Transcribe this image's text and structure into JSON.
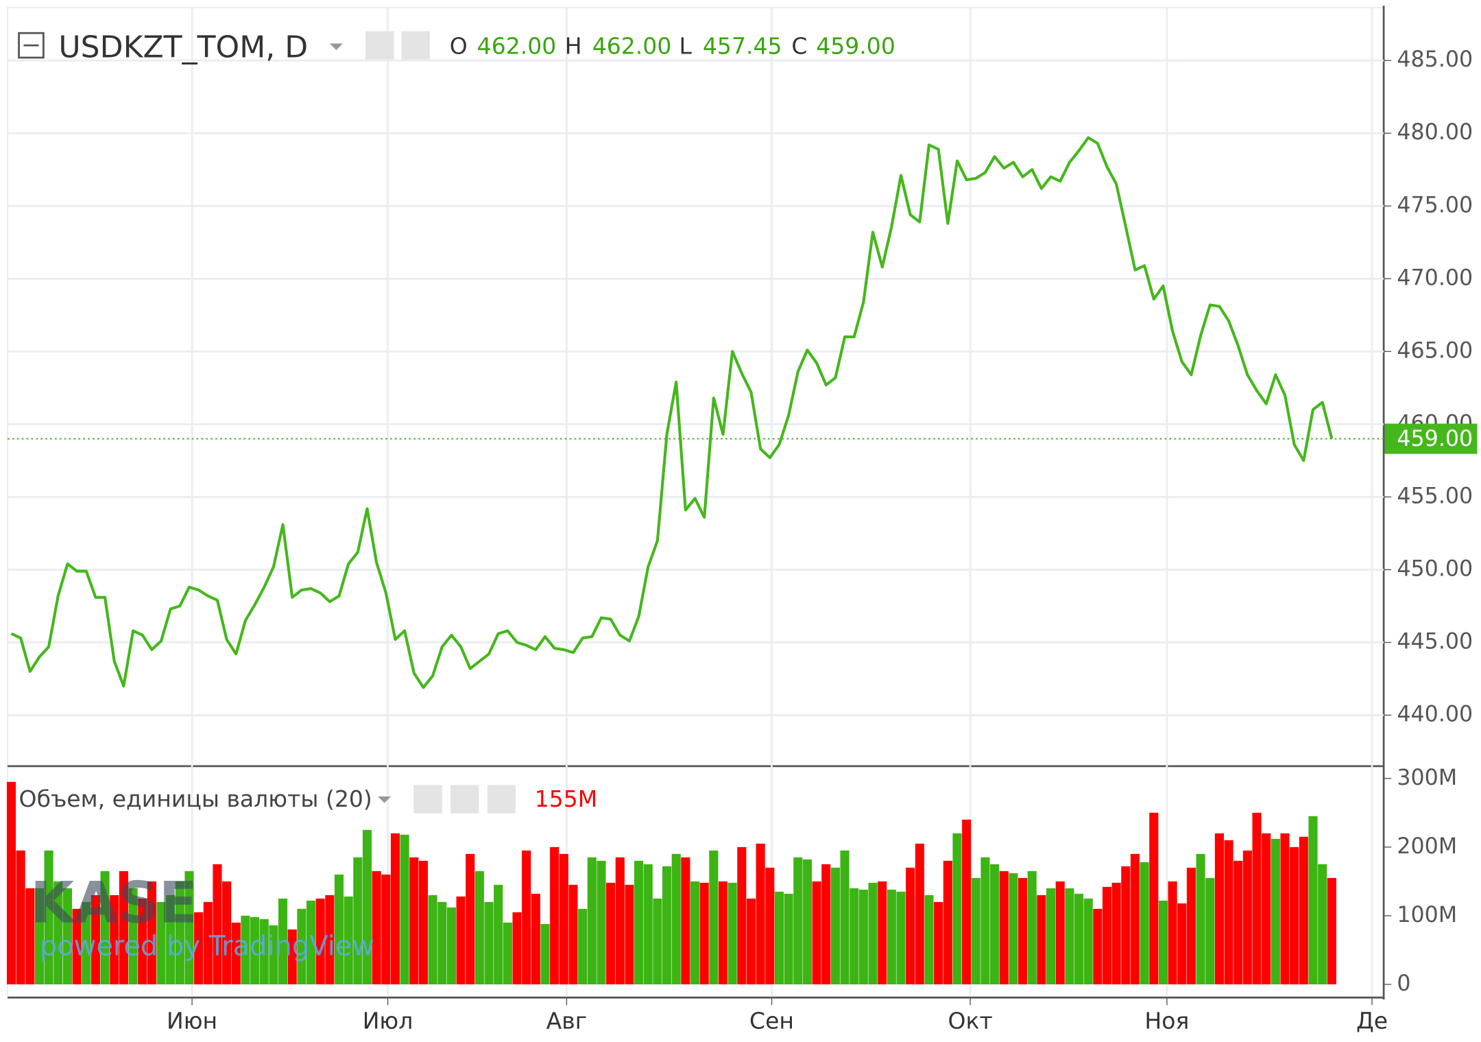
{
  "chart_data": [
    {
      "type": "line",
      "title": "USDKZT_TOM, D",
      "color": "#45b71c",
      "ohlc": [
        {
          "name": "O",
          "value": "462.00"
        },
        {
          "name": "H",
          "value": "462.00"
        },
        {
          "name": "L",
          "value": "457.45"
        },
        {
          "name": "C",
          "value": "459.00"
        }
      ],
      "values": [
        445.6,
        445.3,
        443.0,
        444.0,
        444.7,
        448.2,
        450.4,
        449.9,
        449.9,
        448.1,
        448.1,
        443.7,
        442.0,
        445.8,
        445.5,
        444.5,
        445.1,
        447.3,
        447.5,
        448.8,
        448.6,
        448.2,
        447.9,
        445.2,
        444.2,
        446.5,
        447.6,
        448.8,
        450.2,
        453.1,
        448.1,
        448.6,
        448.7,
        448.4,
        447.8,
        448.2,
        450.4,
        451.2,
        454.2,
        450.5,
        448.4,
        445.2,
        445.8,
        442.9,
        441.9,
        442.7,
        444.7,
        445.5,
        444.7,
        443.2,
        443.7,
        444.2,
        445.6,
        445.8,
        445.0,
        444.8,
        444.5,
        445.4,
        444.6,
        444.5,
        444.3,
        445.3,
        445.4,
        446.7,
        446.6,
        445.5,
        445.1,
        446.8,
        450.2,
        452.0,
        459.3,
        462.9,
        454.1,
        454.9,
        453.6,
        461.8,
        459.3,
        465.0,
        463.5,
        462.2,
        458.3,
        457.7,
        458.6,
        460.6,
        463.6,
        465.1,
        464.2,
        462.7,
        463.2,
        466.0,
        466.0,
        468.4,
        473.2,
        470.8,
        473.6,
        477.1,
        474.4,
        473.9,
        479.2,
        478.9,
        473.8,
        478.1,
        476.8,
        476.9,
        477.3,
        478.4,
        477.6,
        478.0,
        477.0,
        477.5,
        476.2,
        477.0,
        476.7,
        478.0,
        478.8,
        479.7,
        479.3,
        477.7,
        476.5,
        473.6,
        470.6,
        470.9,
        468.6,
        469.5,
        466.4,
        464.3,
        463.4,
        466.1,
        468.2,
        468.1,
        467.1,
        465.4,
        463.4,
        462.3,
        461.4,
        463.4,
        462.0,
        458.6,
        457.5,
        461.0,
        461.5,
        459.0
      ],
      "xlim": [
        -0.4,
        146.55
      ],
      "xticks": [
        {
          "value": 19.3,
          "label": "Июн"
        },
        {
          "value": 40.2,
          "label": "Июл"
        },
        {
          "value": 59.3,
          "label": "Авг"
        },
        {
          "value": 81.2,
          "label": "Сен"
        },
        {
          "value": 102.4,
          "label": "Окт"
        },
        {
          "value": 123.4,
          "label": "Ноя"
        },
        {
          "value": 145.3,
          "label": "Де"
        }
      ],
      "ylim": [
        436.56,
        488.64
      ],
      "yticks": [
        {
          "value": 440,
          "label": "440.00"
        },
        {
          "value": 445,
          "label": "445.00"
        },
        {
          "value": 450,
          "label": "450.00"
        },
        {
          "value": 455,
          "label": "455.00"
        },
        {
          "value": 460,
          "label": "460.00"
        },
        {
          "value": 465,
          "label": "465.00"
        },
        {
          "value": 470,
          "label": "470.00"
        },
        {
          "value": 475,
          "label": "475.00"
        },
        {
          "value": 480,
          "label": "480.00"
        },
        {
          "value": 485,
          "label": "485.00"
        }
      ],
      "grid": true
    },
    {
      "type": "bar",
      "title": "Объем, единицы валюты (20)",
      "last_label": "155M",
      "color_up": "#3cb414",
      "color_down": "#ff0000",
      "values": [
        295,
        195,
        140,
        140,
        195,
        150,
        140,
        110,
        120,
        130,
        165,
        130,
        165,
        140,
        125,
        150,
        120,
        130,
        150,
        165,
        105,
        120,
        175,
        150,
        90,
        100,
        98,
        95,
        86,
        125,
        80,
        110,
        122,
        125,
        130,
        160,
        128,
        185,
        225,
        165,
        160,
        220,
        218,
        185,
        180,
        130,
        120,
        112,
        128,
        190,
        165,
        120,
        145,
        90,
        105,
        195,
        132,
        88,
        200,
        190,
        145,
        110,
        185,
        180,
        148,
        185,
        145,
        180,
        175,
        125,
        172,
        190,
        185,
        150,
        148,
        195,
        150,
        148,
        200,
        125,
        205,
        170,
        135,
        132,
        185,
        182,
        150,
        175,
        170,
        195,
        140,
        138,
        148,
        150,
        138,
        135,
        170,
        205,
        130,
        120,
        180,
        220,
        240,
        155,
        185,
        175,
        165,
        162,
        155,
        165,
        130,
        140,
        150,
        140,
        132,
        125,
        110,
        142,
        148,
        172,
        190,
        178,
        250,
        122,
        150,
        118,
        170,
        190,
        155,
        220,
        210,
        180,
        195,
        250,
        220,
        212,
        220,
        200,
        215,
        245,
        175,
        155
      ],
      "ylim": [
        -17.9,
        316.5
      ],
      "yticks": [
        0,
        {
          "value": 100,
          "label": "100M"
        },
        {
          "value": 200,
          "label": "200M"
        },
        {
          "value": 300,
          "label": "300M"
        }
      ],
      "watermark": [
        "KASE",
        "powered by TradingView"
      ]
    }
  ]
}
